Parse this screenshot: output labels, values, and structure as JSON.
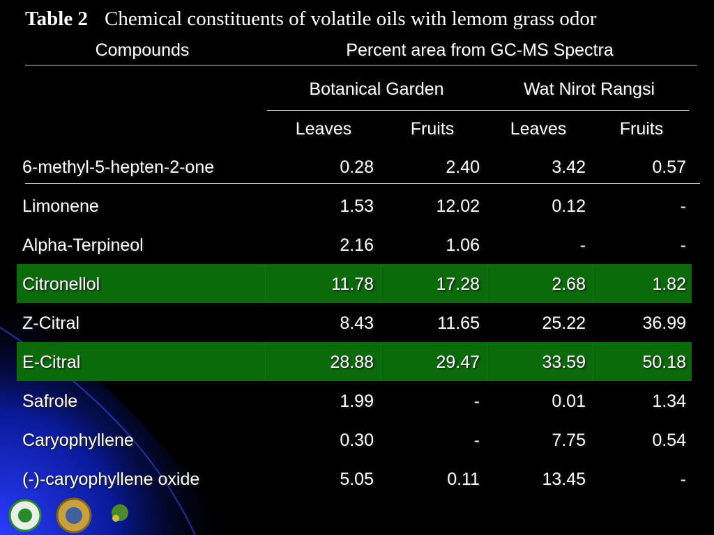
{
  "title": {
    "label": "Table 2",
    "text": "Chemical constituents of  volatile oils with lemom grass  odor"
  },
  "table": {
    "header": {
      "compounds": "Compounds",
      "group": "Percent area from GC-MS  Spectra",
      "sites": [
        "Botanical  Garden",
        "Wat Nirot Rangsi"
      ],
      "parts": [
        "Leaves",
        "Fruits",
        "Leaves",
        "Fruits"
      ]
    },
    "rows": [
      [
        "6-methyl-5-hepten-2-one",
        "0.28",
        "2.40",
        "3.42",
        "0.57"
      ],
      [
        "Limonene",
        "1.53",
        "12.02",
        "0.12",
        "-"
      ],
      [
        "Alpha-Terpineol",
        "2.16",
        "1.06",
        "-",
        "-"
      ],
      [
        "Citronellol",
        "11.78",
        "17.28",
        "2.68",
        "1.82"
      ],
      [
        "Z-Citral",
        "8.43",
        "11.65",
        "25.22",
        "36.99"
      ],
      [
        "E-Citral",
        "28.88",
        "29.47",
        "33.59",
        "50.18"
      ],
      [
        "Safrole",
        "1.99",
        "-",
        "0.01",
        "1.34"
      ],
      [
        "Caryophyllene",
        "0.30",
        "-",
        "7.75",
        "0.54"
      ],
      [
        "(-)-caryophyllene oxide",
        "5.05",
        "0.11",
        "13.45",
        "-"
      ]
    ]
  }
}
